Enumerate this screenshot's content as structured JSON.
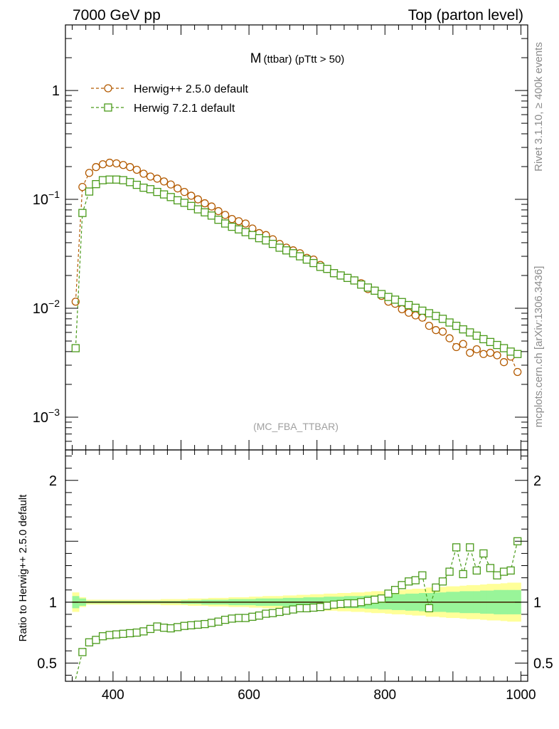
{
  "header": {
    "left": "7000 GeV pp",
    "right": "Top (parton level)"
  },
  "title": {
    "main": "M",
    "sub": "(ttbar) (pTtt > 50)"
  },
  "watermark": "(MC_FBA_TTBAR)",
  "side_labels": {
    "rivet": "Rivet 3.1.10, ≥ 400k events",
    "mcplots": "mcplots.cern.ch [arXiv:1306.3436]"
  },
  "ratio_ylabel": "Ratio to Herwig++ 2.5.0 default",
  "colors": {
    "herwigpp": "#b35a00",
    "herwig7": "#4a9a1a",
    "band_inner": "#99f599",
    "band_outer": "#ffff99"
  },
  "chart_data": [
    {
      "type": "line",
      "scale": "log",
      "xlim": [
        330,
        1010
      ],
      "ylim": [
        0.0005,
        4.0
      ],
      "yticks": [
        {
          "value": 0.001,
          "base": "10",
          "exp": "−3"
        },
        {
          "value": 0.01,
          "base": "10",
          "exp": "−2"
        },
        {
          "value": 0.1,
          "base": "10",
          "exp": "−1"
        },
        {
          "value": 1,
          "base": "1",
          "exp": ""
        }
      ],
      "x": [
        345,
        355,
        365,
        375,
        385,
        395,
        405,
        415,
        425,
        435,
        445,
        455,
        465,
        475,
        485,
        495,
        505,
        515,
        525,
        535,
        545,
        555,
        565,
        575,
        585,
        595,
        605,
        615,
        625,
        635,
        645,
        655,
        665,
        675,
        685,
        695,
        705,
        715,
        725,
        735,
        745,
        755,
        765,
        775,
        785,
        795,
        805,
        815,
        825,
        835,
        845,
        855,
        865,
        875,
        885,
        895,
        905,
        915,
        925,
        935,
        945,
        955,
        965,
        975,
        985,
        995
      ],
      "series": [
        {
          "name": "Herwig++ 2.5.0 default",
          "marker": "circle",
          "values": [
            0.0115,
            0.13,
            0.175,
            0.198,
            0.21,
            0.217,
            0.214,
            0.207,
            0.198,
            0.187,
            0.172,
            0.162,
            0.155,
            0.146,
            0.137,
            0.126,
            0.117,
            0.108,
            0.1,
            0.092,
            0.086,
            0.078,
            0.072,
            0.066,
            0.063,
            0.06,
            0.054,
            0.049,
            0.047,
            0.043,
            0.039,
            0.036,
            0.034,
            0.032,
            0.029,
            0.028,
            0.025,
            0.023,
            0.021,
            0.02,
            0.019,
            0.018,
            0.017,
            0.015,
            0.0145,
            0.013,
            0.0115,
            0.011,
            0.0098,
            0.0091,
            0.0086,
            0.0082,
            0.0069,
            0.0063,
            0.0061,
            0.0053,
            0.0044,
            0.0047,
            0.0039,
            0.0042,
            0.0038,
            0.0039,
            0.0037,
            0.0032,
            0.0036,
            0.0026
          ]
        },
        {
          "name": "Herwig 7.2.1 default",
          "marker": "square",
          "values": [
            0.0043,
            0.075,
            0.118,
            0.138,
            0.15,
            0.152,
            0.152,
            0.15,
            0.144,
            0.136,
            0.128,
            0.124,
            0.117,
            0.111,
            0.105,
            0.098,
            0.093,
            0.087,
            0.081,
            0.076,
            0.071,
            0.065,
            0.06,
            0.056,
            0.053,
            0.05,
            0.047,
            0.044,
            0.042,
            0.039,
            0.036,
            0.034,
            0.032,
            0.03,
            0.028,
            0.026,
            0.024,
            0.023,
            0.021,
            0.02,
            0.019,
            0.018,
            0.0165,
            0.0155,
            0.0145,
            0.0135,
            0.0127,
            0.012,
            0.0114,
            0.0107,
            0.0101,
            0.0095,
            0.009,
            0.0085,
            0.008,
            0.0074,
            0.0069,
            0.0064,
            0.006,
            0.0056,
            0.0052,
            0.0049,
            0.0046,
            0.0043,
            0.004,
            0.0038
          ]
        }
      ],
      "legend": "top-left"
    },
    {
      "type": "line",
      "scale": "linear",
      "xlabel_ticks": [
        "400",
        "600",
        "800",
        "1000"
      ],
      "xticks": [
        400,
        600,
        800,
        1000
      ],
      "xlim": [
        330,
        1010
      ],
      "ylim": [
        0.35,
        2.25
      ],
      "yticks": [
        {
          "value": 0.5,
          "label": "0.5"
        },
        {
          "value": 1,
          "label": "1"
        },
        {
          "value": 2,
          "label": "2"
        }
      ],
      "ratio_values": [
        0.37,
        0.59,
        0.67,
        0.69,
        0.72,
        0.73,
        0.735,
        0.74,
        0.745,
        0.75,
        0.76,
        0.78,
        0.8,
        0.79,
        0.785,
        0.795,
        0.805,
        0.81,
        0.815,
        0.82,
        0.83,
        0.84,
        0.855,
        0.865,
        0.87,
        0.87,
        0.88,
        0.89,
        0.905,
        0.91,
        0.92,
        0.93,
        0.94,
        0.95,
        0.95,
        0.955,
        0.96,
        0.97,
        0.98,
        0.985,
        0.99,
        0.99,
        1.0,
        1.01,
        1.02,
        1.03,
        1.07,
        1.1,
        1.14,
        1.17,
        1.18,
        1.22,
        0.95,
        1.12,
        1.17,
        1.25,
        1.45,
        1.23,
        1.45,
        1.26,
        1.4,
        1.28,
        1.22,
        1.25,
        1.26,
        1.5
      ],
      "band_inner_halfwidth": [
        0.05,
        0.03,
        0.01,
        0.01,
        0.01,
        0.01,
        0.01,
        0.01,
        0.01,
        0.01,
        0.01,
        0.01,
        0.01,
        0.01,
        0.01,
        0.01,
        0.015,
        0.015,
        0.015,
        0.02,
        0.02,
        0.02,
        0.02,
        0.025,
        0.025,
        0.025,
        0.025,
        0.03,
        0.03,
        0.03,
        0.03,
        0.035,
        0.035,
        0.035,
        0.04,
        0.04,
        0.04,
        0.045,
        0.045,
        0.045,
        0.05,
        0.05,
        0.05,
        0.055,
        0.055,
        0.06,
        0.06,
        0.065,
        0.065,
        0.07,
        0.07,
        0.075,
        0.075,
        0.08,
        0.08,
        0.085,
        0.085,
        0.09,
        0.09,
        0.09,
        0.095,
        0.095,
        0.1,
        0.1,
        0.1,
        0.1
      ],
      "band_outer_halfwidth": [
        0.08,
        0.04,
        0.02,
        0.02,
        0.02,
        0.02,
        0.02,
        0.02,
        0.02,
        0.02,
        0.02,
        0.02,
        0.02,
        0.025,
        0.025,
        0.025,
        0.025,
        0.03,
        0.03,
        0.03,
        0.035,
        0.035,
        0.035,
        0.04,
        0.04,
        0.04,
        0.045,
        0.045,
        0.05,
        0.05,
        0.05,
        0.055,
        0.055,
        0.06,
        0.06,
        0.065,
        0.065,
        0.07,
        0.07,
        0.075,
        0.075,
        0.08,
        0.08,
        0.085,
        0.09,
        0.09,
        0.095,
        0.1,
        0.1,
        0.105,
        0.11,
        0.11,
        0.12,
        0.12,
        0.125,
        0.13,
        0.13,
        0.135,
        0.14,
        0.14,
        0.145,
        0.15,
        0.15,
        0.155,
        0.16,
        0.16
      ]
    }
  ]
}
